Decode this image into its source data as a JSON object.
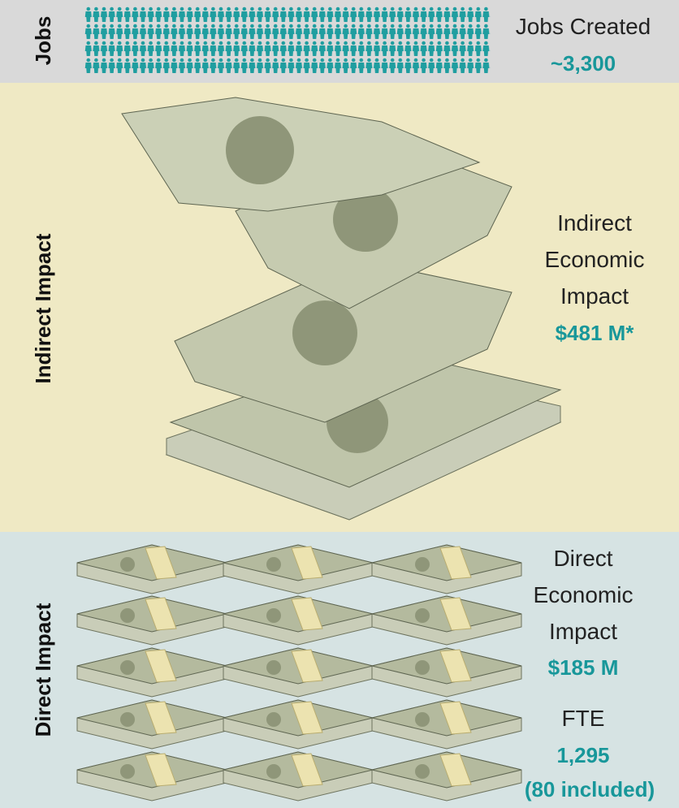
{
  "jobs": {
    "label": "Jobs",
    "title": "Jobs Created",
    "value": "~3,300"
  },
  "indirect": {
    "label": "Indirect Impact",
    "title": "Indirect Economic Impact",
    "value": "$481 M*"
  },
  "direct": {
    "label": "Direct Impact",
    "title": "Direct Economic Impact",
    "value": "$185 M",
    "fte_title": "FTE",
    "fte_value": "1,295",
    "fte_note": "(80 included)"
  }
}
